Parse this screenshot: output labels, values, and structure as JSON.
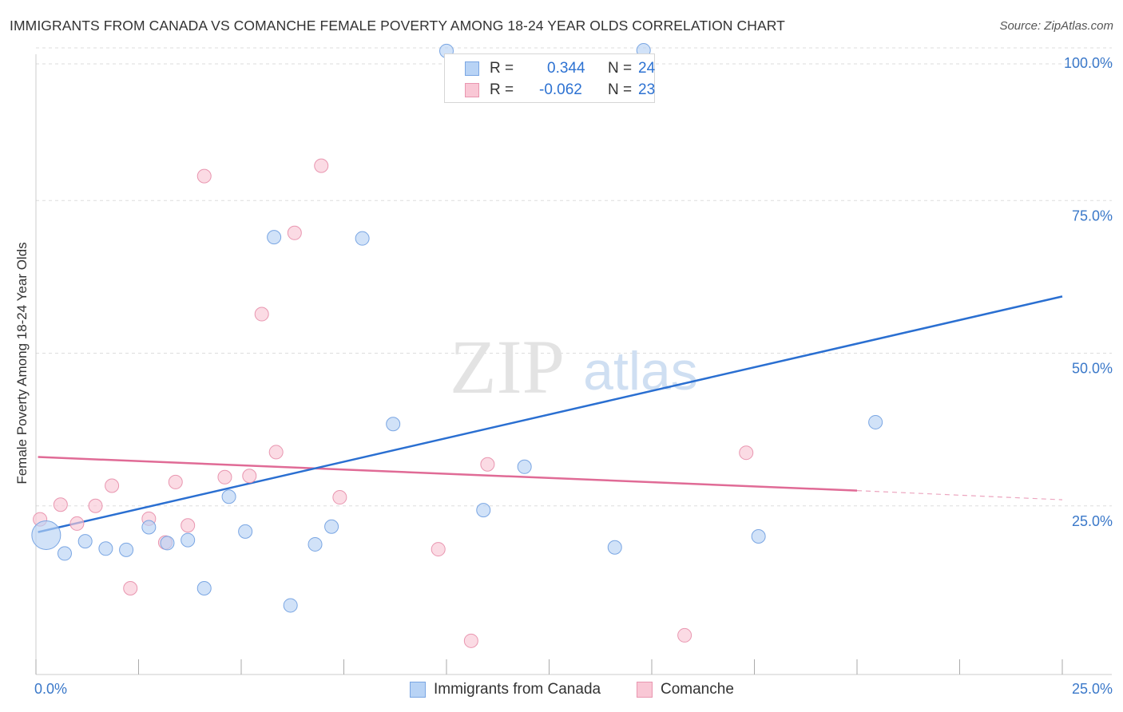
{
  "title": "IMMIGRANTS FROM CANADA VS COMANCHE FEMALE POVERTY AMONG 18-24 YEAR OLDS CORRELATION CHART",
  "source": "Source: ZipAtlas.com",
  "watermark": {
    "zip": "ZIP",
    "atlas": "atlas"
  },
  "legend": {
    "r_label": "R =",
    "n_label": "N =",
    "series1": {
      "r": "0.344",
      "n": "24"
    },
    "series2": {
      "r": "-0.062",
      "n": "23"
    }
  },
  "colors": {
    "series1_fill": "#b8d3f5",
    "series1_stroke": "#7aa6e3",
    "series1_line": "#2a6fd1",
    "series2_fill": "#f9c7d5",
    "series2_stroke": "#e996b0",
    "series2_line": "#e06b96",
    "axis_text": "#3a78c9",
    "grid": "#dddddd"
  },
  "chart_data": {
    "type": "scatter",
    "title": "IMMIGRANTS FROM CANADA VS COMANCHE FEMALE POVERTY AMONG 18-24 YEAR OLDS CORRELATION CHART",
    "xlabel": "",
    "ylabel": "Female Poverty Among 18-24 Year Olds",
    "xlim": [
      0,
      25
    ],
    "ylim": [
      0,
      100
    ],
    "x_tick_labels": [
      "0.0%",
      "25.0%"
    ],
    "y_tick_labels": [
      "100.0%",
      "75.0%",
      "50.0%",
      "25.0%"
    ],
    "y_ticks": [
      100,
      75,
      50,
      25
    ],
    "series": [
      {
        "name": "Immigrants from Canada",
        "r": 0.344,
        "n": 24,
        "points": [
          {
            "x": 0.25,
            "y": 20.2,
            "big": true
          },
          {
            "x": 0.7,
            "y": 17.2
          },
          {
            "x": 1.2,
            "y": 19.2
          },
          {
            "x": 1.7,
            "y": 18.0
          },
          {
            "x": 2.2,
            "y": 17.8
          },
          {
            "x": 2.75,
            "y": 21.5
          },
          {
            "x": 3.2,
            "y": 18.9
          },
          {
            "x": 3.7,
            "y": 19.4
          },
          {
            "x": 4.1,
            "y": 11.5
          },
          {
            "x": 4.7,
            "y": 26.5
          },
          {
            "x": 5.1,
            "y": 20.8
          },
          {
            "x": 5.8,
            "y": 69.0
          },
          {
            "x": 6.2,
            "y": 8.7
          },
          {
            "x": 6.8,
            "y": 18.7
          },
          {
            "x": 7.2,
            "y": 21.6
          },
          {
            "x": 7.95,
            "y": 68.8
          },
          {
            "x": 8.7,
            "y": 38.4
          },
          {
            "x": 10.9,
            "y": 24.3
          },
          {
            "x": 11.9,
            "y": 31.4
          },
          {
            "x": 14.1,
            "y": 18.2
          },
          {
            "x": 17.6,
            "y": 20.0
          },
          {
            "x": 20.45,
            "y": 38.7
          },
          {
            "x": 10.0,
            "y": 99.5
          },
          {
            "x": 14.8,
            "y": 99.6
          }
        ],
        "trend": {
          "x0": 0.05,
          "y0": 20.7,
          "x1": 25.0,
          "y1": 59.3
        }
      },
      {
        "name": "Comanche",
        "r": -0.062,
        "n": 23,
        "points": [
          {
            "x": 0.1,
            "y": 22.8
          },
          {
            "x": 0.6,
            "y": 25.2
          },
          {
            "x": 1.0,
            "y": 22.1
          },
          {
            "x": 1.45,
            "y": 25.0
          },
          {
            "x": 1.85,
            "y": 28.3
          },
          {
            "x": 2.3,
            "y": 11.5
          },
          {
            "x": 2.75,
            "y": 22.9
          },
          {
            "x": 3.15,
            "y": 19.0
          },
          {
            "x": 3.4,
            "y": 28.9
          },
          {
            "x": 3.7,
            "y": 21.8
          },
          {
            "x": 4.1,
            "y": 79.0
          },
          {
            "x": 4.6,
            "y": 29.7
          },
          {
            "x": 5.2,
            "y": 29.9
          },
          {
            "x": 5.5,
            "y": 56.4
          },
          {
            "x": 5.85,
            "y": 33.8
          },
          {
            "x": 6.3,
            "y": 69.7
          },
          {
            "x": 6.95,
            "y": 80.7
          },
          {
            "x": 7.4,
            "y": 26.4
          },
          {
            "x": 9.8,
            "y": 17.9
          },
          {
            "x": 10.6,
            "y": 2.9
          },
          {
            "x": 11.0,
            "y": 31.8
          },
          {
            "x": 15.8,
            "y": 3.8
          },
          {
            "x": 17.3,
            "y": 33.7
          }
        ],
        "trend": {
          "x0": 0.05,
          "y0": 33.0,
          "x1": 20.0,
          "y1": 27.5
        },
        "trend_dashed": {
          "x0": 20.0,
          "y0": 27.5,
          "x1": 25.0,
          "y1": 26.0
        }
      }
    ]
  }
}
